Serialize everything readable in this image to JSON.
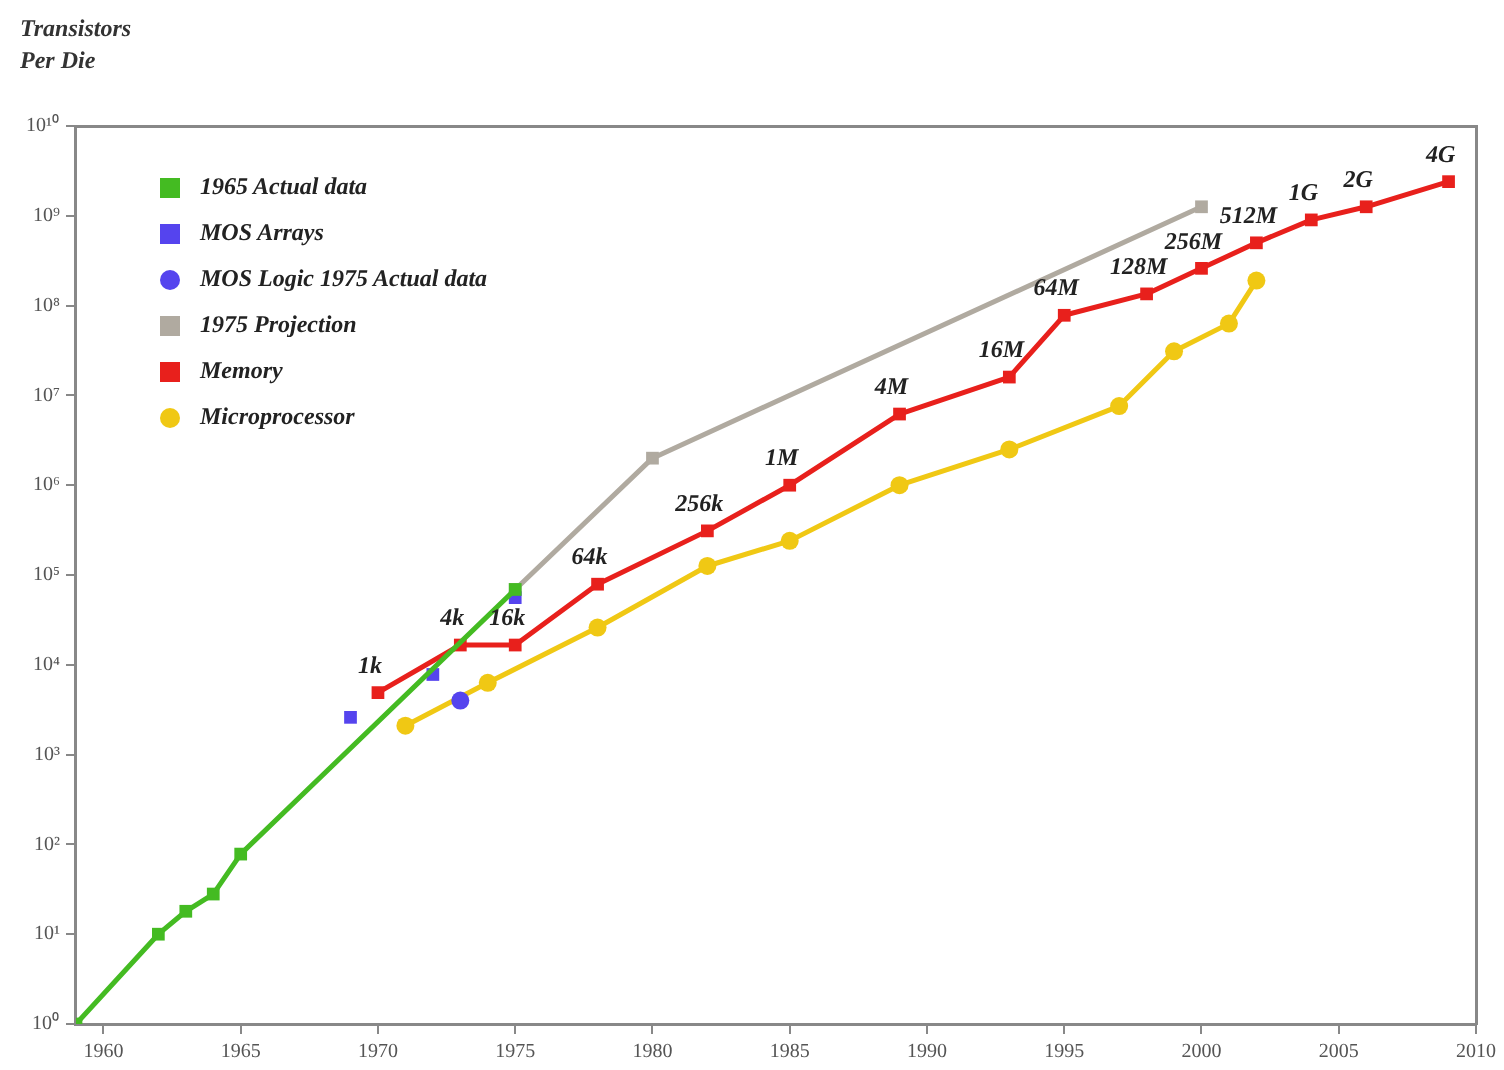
{
  "chart_data": {
    "type": "line",
    "ylabel": "Transistors Per Die",
    "log": "y",
    "grid": false,
    "legend": "top left",
    "xlim": [
      1959,
      2010
    ],
    "xticks": [
      1960,
      1965,
      1970,
      1975,
      1980,
      1985,
      1990,
      1995,
      2000,
      2005,
      2010
    ],
    "ylim": [
      1,
      10000000000
    ],
    "yticks": [
      {
        "value": 1,
        "label": "10⁰"
      },
      {
        "value": 10,
        "label": "10¹"
      },
      {
        "value": 100,
        "label": "10²"
      },
      {
        "value": 1000,
        "label": "10³"
      },
      {
        "value": 10000,
        "label": "10⁴"
      },
      {
        "value": 100000,
        "label": "10⁵"
      },
      {
        "value": 1000000,
        "label": "10⁶"
      },
      {
        "value": 10000000,
        "label": "10⁷"
      },
      {
        "value": 100000000,
        "label": "10⁸"
      },
      {
        "value": 1000000000,
        "label": "10⁹"
      },
      {
        "value": 10000000000,
        "label": "10¹⁰"
      }
    ],
    "series": [
      {
        "name": "1965 Actual data",
        "type": "line",
        "marker": "square",
        "color": "#44bb22",
        "x": [
          1959,
          1962,
          1963,
          1964,
          1965,
          1975
        ],
        "values": [
          1,
          10,
          18,
          28,
          78,
          69000
        ]
      },
      {
        "name": "MOS Arrays",
        "type": "scatter",
        "marker": "square",
        "color": "#5544ee",
        "x": [
          1969,
          1972,
          1975
        ],
        "values": [
          2600,
          7800,
          56000
        ]
      },
      {
        "name": "MOS Logic 1975 Actual data",
        "type": "scatter",
        "marker": "circle",
        "color": "#5544ee",
        "x": [
          1973
        ],
        "values": [
          4000
        ]
      },
      {
        "name": "1975 Projection",
        "type": "line",
        "marker": "square",
        "color": "#b0aaa0",
        "x": [
          1975,
          1980,
          2000
        ],
        "values": [
          69000,
          2000000,
          1260000000
        ]
      },
      {
        "name": "Memory",
        "type": "line",
        "marker": "square",
        "color": "#e8201c",
        "x": [
          1970,
          1973,
          1975,
          1978,
          1982,
          1985,
          1989,
          1993,
          1995,
          1998,
          2000,
          2002,
          2004,
          2006,
          2009
        ],
        "values": [
          4900,
          16600,
          16600,
          79000,
          310000,
          1000000,
          6200000,
          16000000,
          78000000,
          135000000,
          260000000,
          500000000,
          900000000,
          1260000000,
          2400000000
        ]
      },
      {
        "name": "Microprocessor",
        "type": "line",
        "marker": "circle",
        "color": "#f0c814",
        "x": [
          1971,
          1974,
          1978,
          1982,
          1985,
          1989,
          1993,
          1997,
          1999,
          2001,
          2002
        ],
        "values": [
          2100,
          6300,
          26000,
          126000,
          240000,
          1000000,
          2500000,
          7600000,
          31000000,
          63000000,
          190000000
        ]
      }
    ],
    "annotations": [
      {
        "text": "1k",
        "x": 1970,
        "y": 4900
      },
      {
        "text": "4k",
        "x": 1973,
        "y": 16600
      },
      {
        "text": "16k",
        "x": 1975,
        "y": 16600
      },
      {
        "text": "64k",
        "x": 1978,
        "y": 79000
      },
      {
        "text": "256k",
        "x": 1982,
        "y": 310000
      },
      {
        "text": "1M",
        "x": 1985,
        "y": 1000000
      },
      {
        "text": "4M",
        "x": 1989,
        "y": 6200000
      },
      {
        "text": "16M",
        "x": 1993,
        "y": 16000000
      },
      {
        "text": "64M",
        "x": 1995,
        "y": 78000000
      },
      {
        "text": "128M",
        "x": 1998,
        "y": 135000000
      },
      {
        "text": "256M",
        "x": 2000,
        "y": 260000000
      },
      {
        "text": "512M",
        "x": 2002,
        "y": 500000000
      },
      {
        "text": "1G",
        "x": 2004,
        "y": 900000000
      },
      {
        "text": "2G",
        "x": 2006,
        "y": 1260000000
      },
      {
        "text": "4G",
        "x": 2009,
        "y": 2400000000
      }
    ]
  }
}
